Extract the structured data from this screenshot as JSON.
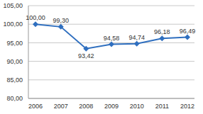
{
  "chart_data": {
    "type": "line",
    "categories": [
      "2006",
      "2007",
      "2008",
      "2009",
      "2010",
      "2011",
      "2012"
    ],
    "values": [
      100.0,
      99.3,
      93.42,
      94.58,
      94.74,
      96.18,
      96.49
    ],
    "value_labels": [
      "100,00",
      "99,30",
      "93,42",
      "94,58",
      "94,74",
      "96,18",
      "96,49"
    ],
    "color": "#2f6fbf",
    "marker": "diamond",
    "ylim": [
      80,
      105
    ],
    "yticks": [
      {
        "value": 80,
        "label": "80,00"
      },
      {
        "value": 85,
        "label": "85,00"
      },
      {
        "value": 90,
        "label": "90,00"
      },
      {
        "value": 95,
        "label": "95,00"
      },
      {
        "value": 100,
        "label": "100,00"
      },
      {
        "value": 105,
        "label": "105,00"
      }
    ],
    "grid": true,
    "data_labels": true
  }
}
